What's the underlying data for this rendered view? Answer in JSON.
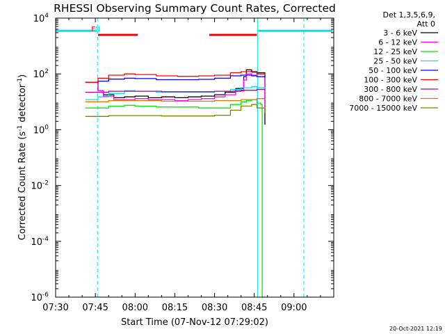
{
  "chart_data": {
    "type": "line",
    "title": "RHESSI Observing Summary Count Rates, Corrected",
    "ylabel_parts": [
      "Corrected Count Rate (s",
      "-1",
      " detector",
      "-1",
      ")"
    ],
    "xlabel": "Start Time (07-Nov-12 07:29:02)",
    "footer": "20-Oct-2021 12:19",
    "xlim_min": [
      450,
      555
    ],
    "x_ticks": [
      {
        "label": "07:30",
        "min": 450
      },
      {
        "label": "07:45",
        "min": 465
      },
      {
        "label": "08:00",
        "min": 480
      },
      {
        "label": "08:15",
        "min": 495
      },
      {
        "label": "08:30",
        "min": 510
      },
      {
        "label": "08:45",
        "min": 525
      },
      {
        "label": "09:00",
        "min": 540
      }
    ],
    "y_scale": "log",
    "ylim": [
      1e-06,
      10000
    ],
    "y_ticks": [
      {
        "base": "10",
        "exp": "-6",
        "value": 1e-06
      },
      {
        "base": "10",
        "exp": "-4",
        "value": 0.0001
      },
      {
        "base": "10",
        "exp": "-2",
        "value": 0.01
      },
      {
        "base": "10",
        "exp": "0",
        "value": 1
      },
      {
        "base": "10",
        "exp": "2",
        "value": 100
      },
      {
        "base": "10",
        "exp": "4",
        "value": 10000
      }
    ],
    "legend_header": [
      "Det 1,3,5,6,9,",
      "Att 0"
    ],
    "legend_placement": "right",
    "series": [
      {
        "name": "3 - 6 keV",
        "color": "#000000",
        "x": [
          461.2,
          462,
          464,
          466,
          468,
          472,
          476,
          480,
          485,
          490,
          495,
          500,
          505,
          510,
          514,
          518,
          521,
          522,
          524,
          526,
          529
        ],
        "y": [
          50,
          50,
          50,
          25,
          18,
          14,
          15,
          16,
          14,
          15,
          14,
          15,
          16,
          18,
          22,
          30,
          80,
          140,
          120,
          110,
          1.5
        ]
      },
      {
        "name": "6 - 12 keV",
        "color": "#ff00ff",
        "x": [
          461.2,
          462,
          464,
          466,
          468,
          472,
          476,
          480,
          485,
          490,
          495,
          500,
          505,
          510,
          514,
          518,
          521,
          522,
          524,
          526,
          529
        ],
        "y": [
          50,
          50,
          50,
          25,
          16,
          12,
          12,
          13,
          12,
          12,
          11,
          12,
          13,
          15,
          18,
          25,
          60,
          100,
          90,
          80,
          4
        ]
      },
      {
        "name": "12 - 25 keV",
        "color": "#00ee00",
        "x": [
          461.2,
          462,
          466,
          470,
          476,
          480,
          488,
          496,
          504,
          510,
          516,
          520,
          522,
          524,
          526,
          527.5,
          528,
          529
        ],
        "y": [
          6,
          6,
          6,
          7,
          7.5,
          7,
          6.5,
          6.5,
          6,
          6,
          8,
          10,
          11,
          12,
          9,
          8,
          1e-06,
          1e-06
        ]
      },
      {
        "name": "25 - 50 keV",
        "color": "#00e5e5",
        "x": [
          461.2,
          462,
          466,
          470,
          476,
          480,
          488,
          496,
          504,
          510,
          516,
          520,
          524,
          526,
          529
        ],
        "y": [
          12,
          12,
          15,
          20,
          25,
          24,
          22,
          22,
          22,
          24,
          28,
          32,
          35,
          32,
          30
        ]
      },
      {
        "name": "50 - 100 keV",
        "color": "#0000ff",
        "x": [
          461.2,
          462,
          466,
          470,
          476,
          480,
          488,
          496,
          504,
          510,
          516,
          520,
          524,
          526,
          529
        ],
        "y": [
          50,
          50,
          55,
          65,
          70,
          68,
          62,
          62,
          64,
          70,
          85,
          90,
          85,
          80,
          75
        ]
      },
      {
        "name": "100 - 300 keV",
        "color": "#ff0000",
        "x": [
          461.2,
          462,
          466,
          470,
          476,
          480,
          488,
          496,
          504,
          510,
          516,
          520,
          524,
          526,
          529
        ],
        "y": [
          50,
          50,
          70,
          90,
          100,
          95,
          85,
          82,
          85,
          90,
          110,
          120,
          115,
          100,
          90
        ]
      },
      {
        "name": "300 - 800 keV",
        "color": "#aa00aa",
        "x": [
          461.2,
          462,
          470,
          480,
          490,
          500,
          510,
          520,
          526,
          529
        ],
        "y": [
          22,
          22,
          24,
          24,
          23,
          23,
          24,
          26,
          28,
          28
        ]
      },
      {
        "name": "800 - 7000 keV",
        "color": "#e07800",
        "x": [
          461.2,
          462,
          470,
          480,
          490,
          500,
          510,
          520,
          526,
          529
        ],
        "y": [
          10,
          10,
          11,
          11,
          10.5,
          10.5,
          11,
          12,
          13,
          13
        ]
      },
      {
        "name": "7000 - 15000 keV",
        "color": "#808000",
        "x": [
          461.2,
          462,
          470,
          480,
          490,
          500,
          510,
          516,
          520,
          524,
          526,
          529
        ],
        "y": [
          3,
          3,
          3.2,
          3.2,
          3.1,
          3.1,
          3.3,
          5,
          7,
          8,
          6,
          4
        ]
      }
    ],
    "annotations": [
      {
        "text": "F",
        "color": "#ff0000",
        "x_min": 464.2
      },
      {
        "text": "N",
        "color": "#00e5e5",
        "x_min": 465.8
      }
    ],
    "flag_bars": [
      {
        "color": "#00e5e5",
        "x_start": 450,
        "x_end": 465.5,
        "y": 3500
      },
      {
        "color": "#00e5e5",
        "x_start": 526.5,
        "x_end": 554.5,
        "y": 3500
      },
      {
        "color": "#ff0000",
        "x_start": 466,
        "x_end": 481,
        "y": 2500
      },
      {
        "color": "#ff0000",
        "x_start": 508,
        "x_end": 526,
        "y": 2500
      }
    ],
    "vlines_solid": [
      {
        "color": "#00e5e5",
        "x_min": 526.3
      }
    ],
    "vlines_dashed": [
      {
        "color": "#00e5e5",
        "x_min": 465.8
      },
      {
        "color": "#00e5e5",
        "x_min": 543.7
      }
    ],
    "grid": false
  }
}
